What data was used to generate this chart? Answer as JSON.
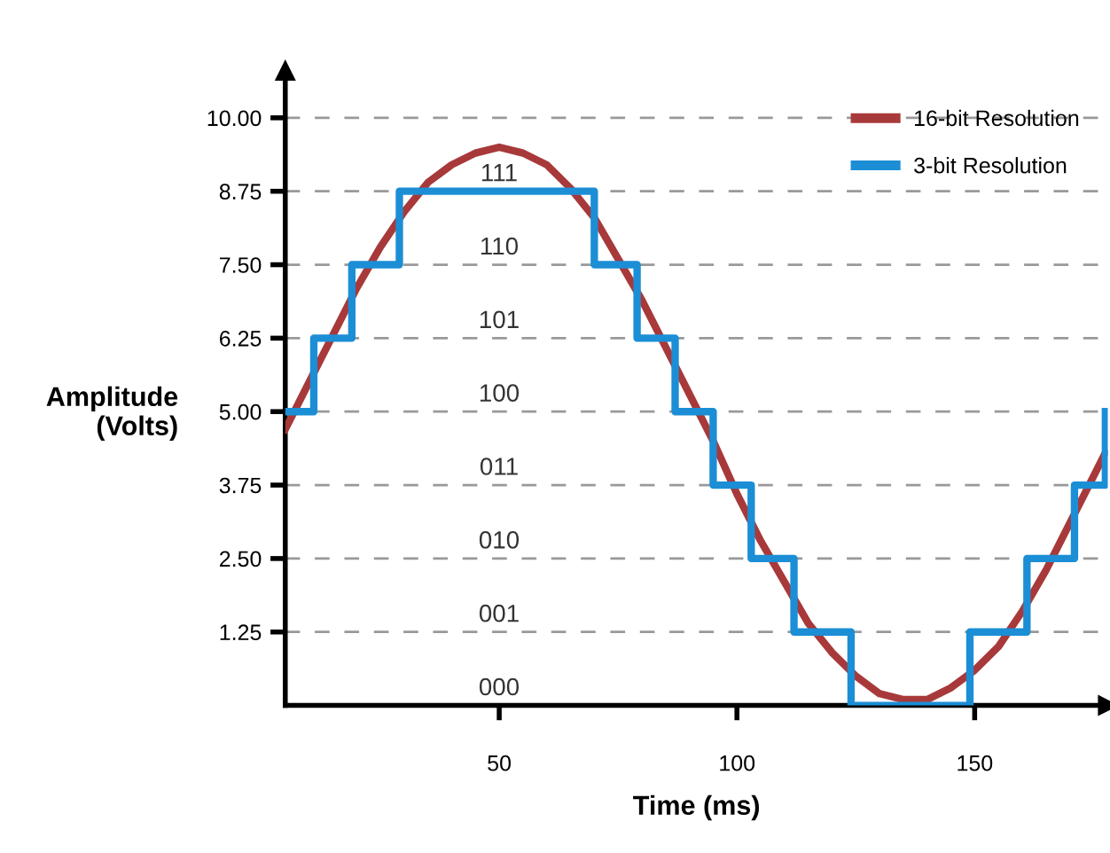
{
  "chart_data": {
    "type": "line",
    "xlabel": "Time (ms)",
    "ylabel": "Amplitude\n(Volts)",
    "series": [
      {
        "name": "16-bit Resolution",
        "color": "#a8393a",
        "x": [
          5,
          10,
          15,
          20,
          25,
          30,
          35,
          40,
          45,
          50,
          55,
          60,
          65,
          70,
          75,
          80,
          85,
          90,
          95,
          100,
          105,
          110,
          115,
          120,
          125,
          130,
          135,
          140,
          145,
          150,
          155,
          160,
          165,
          170,
          175,
          177.5
        ],
        "values": [
          4.7,
          5.5,
          6.3,
          7.1,
          7.8,
          8.4,
          8.9,
          9.2,
          9.4,
          9.5,
          9.4,
          9.2,
          8.8,
          8.3,
          7.6,
          6.9,
          6.1,
          5.3,
          4.5,
          3.6,
          2.8,
          2.1,
          1.4,
          0.9,
          0.5,
          0.2,
          0.1,
          0.1,
          0.3,
          0.6,
          1.0,
          1.6,
          2.3,
          3.1,
          3.9,
          4.3
        ]
      },
      {
        "name": "3-bit Resolution",
        "type": "step",
        "color": "#1b8ed6",
        "x": [
          5,
          11,
          19,
          29,
          70,
          79,
          87,
          95,
          103,
          112,
          124,
          149,
          161,
          171,
          177.5
        ],
        "values": [
          5,
          6.25,
          7.5,
          8.75,
          7.5,
          6.25,
          5,
          3.75,
          2.5,
          1.25,
          0,
          1.25,
          2.5,
          3.75,
          5
        ]
      }
    ],
    "annotations": [
      "111",
      "110",
      "101",
      "100",
      "011",
      "010",
      "001",
      "000"
    ],
    "xlim": [
      5,
      178
    ],
    "ylim": [
      0,
      10.8
    ],
    "xticks": [
      50,
      100,
      150
    ],
    "yticks": [
      {
        "value": 1.25,
        "label": "1.25"
      },
      {
        "value": 2.5,
        "label": "2.50"
      },
      {
        "value": 3.75,
        "label": "3.75"
      },
      {
        "value": 5,
        "label": "5.00"
      },
      {
        "value": 6.25,
        "label": "6.25"
      },
      {
        "value": 7.5,
        "label": "7.50"
      },
      {
        "value": 8.75,
        "label": "8.75"
      },
      {
        "value": 10,
        "label": "10.00"
      }
    ],
    "grid": "y",
    "legend": "top right",
    "line_style": "solid"
  }
}
